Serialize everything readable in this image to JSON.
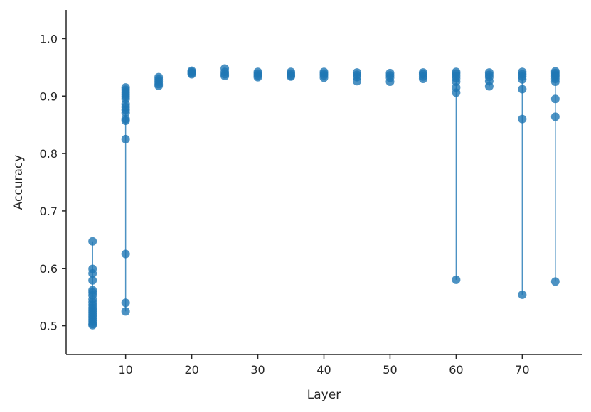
{
  "chart_data": {
    "type": "scatter",
    "xlabel": "Layer",
    "ylabel": "Accuracy",
    "xlim": [
      1,
      79
    ],
    "ylim": [
      0.45,
      1.05
    ],
    "x_ticks": [
      10,
      20,
      30,
      40,
      50,
      60,
      70
    ],
    "y_ticks": [
      0.5,
      0.6,
      0.7,
      0.8,
      0.9,
      1.0
    ],
    "x_tick_labels": [
      "10",
      "20",
      "30",
      "40",
      "50",
      "60",
      "70"
    ],
    "y_tick_labels": [
      "0.5",
      "0.6",
      "0.7",
      "0.8",
      "0.9",
      "1.0"
    ],
    "grid": false,
    "marker_color": "#1f77b4",
    "range_line_color": "#1f77b4",
    "points": [
      {
        "layer": 5,
        "accuracies": [
          0.647,
          0.599,
          0.591,
          0.579,
          0.562,
          0.558,
          0.553,
          0.546,
          0.541,
          0.536,
          0.531,
          0.527,
          0.523,
          0.519,
          0.515,
          0.511,
          0.507,
          0.503,
          0.501
        ]
      },
      {
        "layer": 10,
        "accuracies": [
          0.915,
          0.911,
          0.907,
          0.903,
          0.899,
          0.895,
          0.886,
          0.881,
          0.876,
          0.871,
          0.86,
          0.857,
          0.825,
          0.625,
          0.54,
          0.525
        ]
      },
      {
        "layer": 15,
        "accuracies": [
          0.933,
          0.929,
          0.925,
          0.921,
          0.918
        ]
      },
      {
        "layer": 20,
        "accuracies": [
          0.944,
          0.942,
          0.94,
          0.938
        ]
      },
      {
        "layer": 25,
        "accuracies": [
          0.948,
          0.942,
          0.938,
          0.935
        ]
      },
      {
        "layer": 30,
        "accuracies": [
          0.942,
          0.939,
          0.936,
          0.933
        ]
      },
      {
        "layer": 35,
        "accuracies": [
          0.942,
          0.939,
          0.936,
          0.934
        ]
      },
      {
        "layer": 40,
        "accuracies": [
          0.942,
          0.939,
          0.936,
          0.932
        ]
      },
      {
        "layer": 45,
        "accuracies": [
          0.941,
          0.937,
          0.933,
          0.926
        ]
      },
      {
        "layer": 50,
        "accuracies": [
          0.94,
          0.936,
          0.932,
          0.925
        ]
      },
      {
        "layer": 55,
        "accuracies": [
          0.941,
          0.938,
          0.934,
          0.93
        ]
      },
      {
        "layer": 60,
        "accuracies": [
          0.942,
          0.939,
          0.935,
          0.931,
          0.925,
          0.915,
          0.906,
          0.58
        ]
      },
      {
        "layer": 65,
        "accuracies": [
          0.941,
          0.937,
          0.933,
          0.926,
          0.917
        ]
      },
      {
        "layer": 70,
        "accuracies": [
          0.942,
          0.938,
          0.934,
          0.929,
          0.912,
          0.86,
          0.554
        ]
      },
      {
        "layer": 75,
        "accuracies": [
          0.943,
          0.94,
          0.937,
          0.934,
          0.93,
          0.925,
          0.895,
          0.864,
          0.577
        ]
      }
    ]
  }
}
